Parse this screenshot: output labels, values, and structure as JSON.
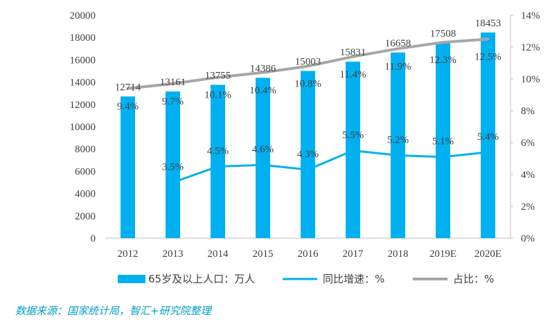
{
  "chart_data": {
    "type": "bar",
    "categories": [
      "2012",
      "2013",
      "2014",
      "2015",
      "2016",
      "2017",
      "2018",
      "2019E",
      "2020E"
    ],
    "series": [
      {
        "name": "65岁及以上人口：万人",
        "type": "bar",
        "axis": "left",
        "color": "#00b0f0",
        "values": [
          12714,
          13161,
          13755,
          14386,
          15003,
          15831,
          16658,
          17508,
          18453
        ],
        "labels": [
          "12714",
          "13161",
          "13755",
          "14386",
          "15003",
          "15831",
          "16658",
          "17508",
          "18453"
        ]
      },
      {
        "name": "同比增速：%",
        "type": "line",
        "axis": "right",
        "color": "#00b0f0",
        "values": [
          null,
          3.5,
          4.5,
          4.6,
          4.3,
          5.5,
          5.2,
          5.1,
          5.4
        ],
        "labels": [
          "",
          "3.5%",
          "4.5%",
          "4.6%",
          "4.3%",
          "5.5%",
          "5.2%",
          "5.1%",
          "5.4%"
        ]
      },
      {
        "name": "占比：%",
        "type": "line",
        "axis": "right",
        "color": "#a6a6a6",
        "values": [
          9.4,
          9.7,
          10.1,
          10.4,
          10.8,
          11.4,
          11.9,
          12.3,
          12.5
        ],
        "labels": [
          "9.4%",
          "9.7%",
          "10.1%",
          "10.4%",
          "10.8%",
          "11.4%",
          "11.9%",
          "12.3%",
          "12.5%"
        ]
      }
    ],
    "y_left": {
      "ylim": [
        0,
        20000
      ],
      "ticks": [
        "0",
        "2000",
        "4000",
        "6000",
        "8000",
        "10000",
        "12000",
        "14000",
        "16000",
        "18000",
        "20000"
      ]
    },
    "y_right": {
      "ylim": [
        0,
        14
      ],
      "ticks": [
        "0%",
        "2%",
        "4%",
        "6%",
        "8%",
        "10%",
        "12%",
        "14%"
      ]
    },
    "grid": false,
    "legend": "bottom",
    "source": "数据来源：国家统计局，智汇+研究院整理"
  }
}
